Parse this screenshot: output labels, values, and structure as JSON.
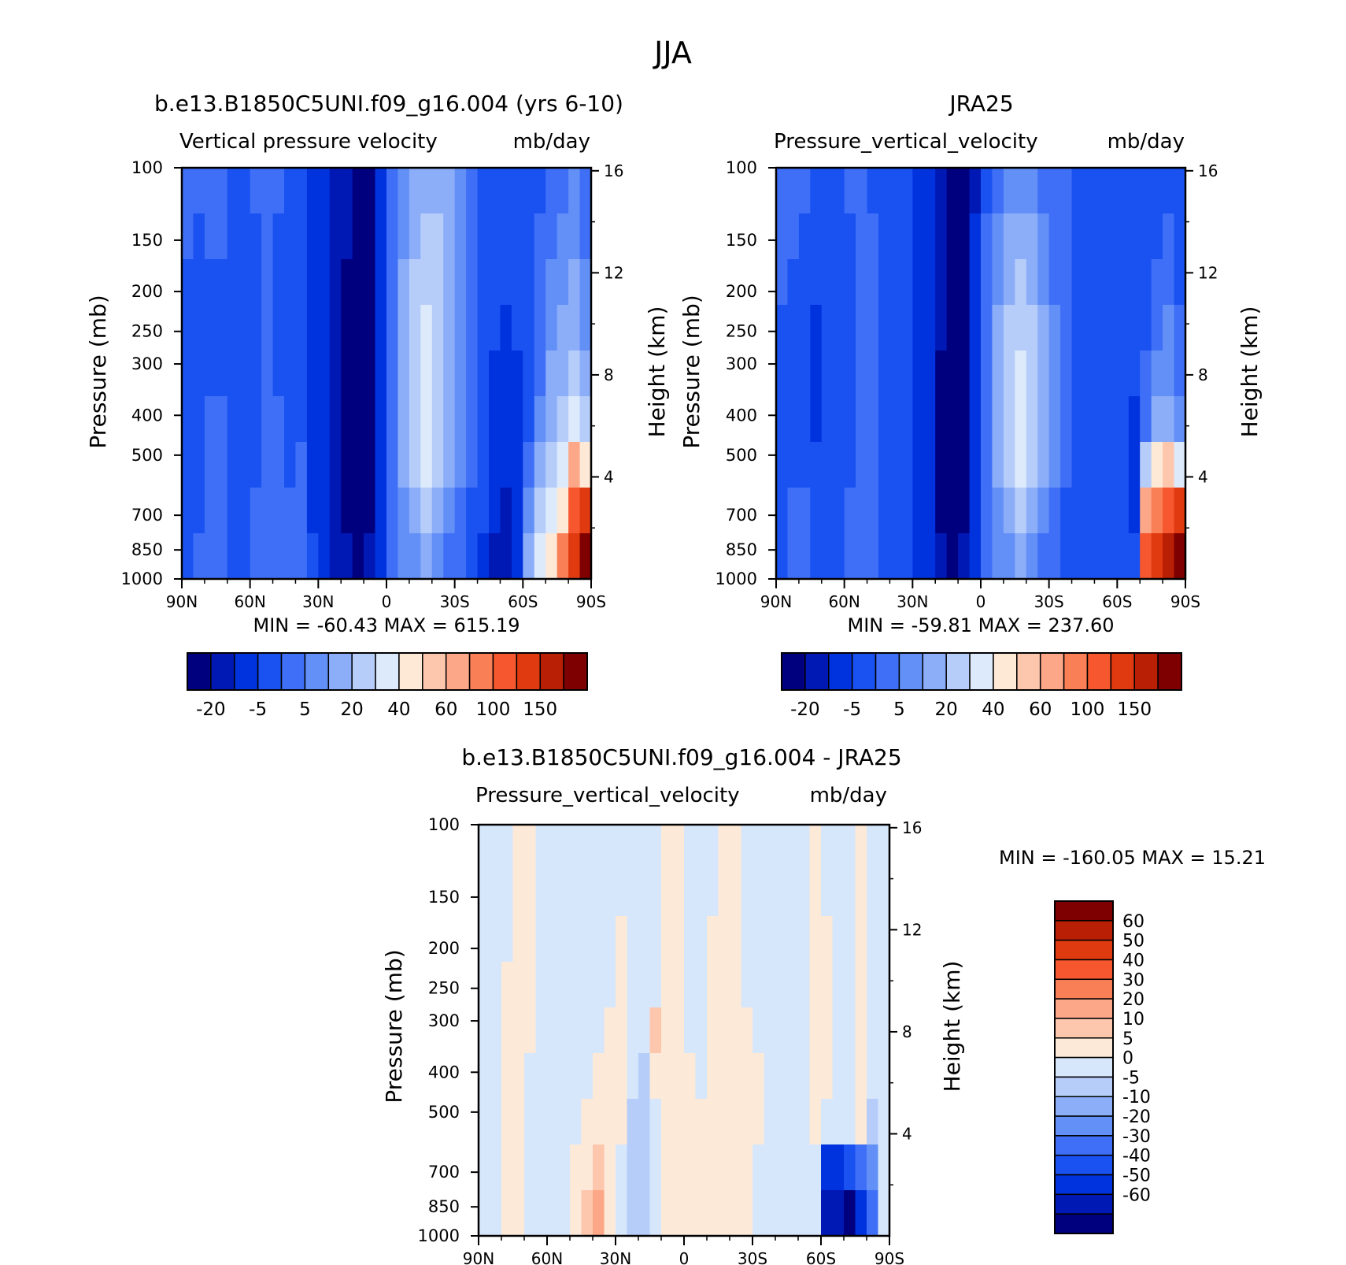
{
  "figure": {
    "title": "JJA"
  },
  "colors": {
    "panel_palette": [
      "#00007f",
      "#0018b4",
      "#0033dd",
      "#1a52f2",
      "#3f6ff6",
      "#6390f7",
      "#8cadf8",
      "#b6cdfa",
      "#ddeafc",
      "#fee8d6",
      "#fdc7ad",
      "#fca787",
      "#f97f57",
      "#f6572e",
      "#e03a10",
      "#b81f05",
      "#7f0000"
    ],
    "diff_palette": [
      "#00007f",
      "#0018b4",
      "#0033dd",
      "#1a52f2",
      "#3f6ff6",
      "#6390f7",
      "#8cadf8",
      "#b6cdfa",
      "#d6e6fb",
      "#fde9d8",
      "#fdc7ad",
      "#fca787",
      "#f97f57",
      "#f6572e",
      "#e03a10",
      "#b81f05",
      "#7f0000"
    ]
  },
  "chart_data": [
    {
      "type": "heatmap",
      "title": "b.e13.B1850C5UNI.f09_g16.004 (yrs 6-10)",
      "subtitle_left": "Vertical pressure velocity",
      "subtitle_right": "mb/day",
      "ylabel": "Pressure (mb)",
      "ylabel_right": "Height (km)",
      "x_ticks": [
        "90N",
        "60N",
        "30N",
        "0",
        "30S",
        "60S",
        "90S"
      ],
      "y_ticks": [
        100,
        150,
        200,
        250,
        300,
        400,
        500,
        700,
        850,
        1000
      ],
      "y_scale": "log",
      "ylim": [
        1000,
        100
      ],
      "height_ticks": [
        4,
        8,
        12,
        16
      ],
      "stats": "MIN = -60.43   MAX = 615.19",
      "colorbar_labels": [
        "-20",
        "-5",
        "5",
        "20",
        "40",
        "60",
        "100",
        "150"
      ],
      "colorbar_orientation": "horizontal",
      "field": [
        [
          4,
          4,
          4,
          4,
          3,
          3,
          4,
          4,
          4,
          3,
          3,
          2,
          2,
          1,
          1,
          0,
          0,
          2,
          4,
          5,
          6,
          6,
          6,
          6,
          5,
          4,
          3,
          3,
          3,
          3,
          3,
          3,
          4,
          4,
          5,
          4
        ],
        [
          4,
          3,
          4,
          4,
          3,
          3,
          3,
          4,
          3,
          3,
          3,
          2,
          2,
          1,
          1,
          0,
          0,
          2,
          4,
          5,
          6,
          7,
          7,
          6,
          5,
          4,
          3,
          3,
          3,
          3,
          3,
          4,
          4,
          5,
          5,
          4
        ],
        [
          3,
          3,
          3,
          3,
          3,
          3,
          3,
          4,
          3,
          3,
          3,
          2,
          2,
          1,
          0,
          0,
          0,
          2,
          4,
          6,
          7,
          7,
          7,
          6,
          5,
          4,
          3,
          3,
          3,
          3,
          3,
          4,
          5,
          5,
          6,
          5
        ],
        [
          3,
          3,
          3,
          3,
          3,
          3,
          3,
          4,
          3,
          3,
          3,
          2,
          2,
          1,
          0,
          0,
          0,
          2,
          4,
          6,
          7,
          8,
          7,
          6,
          5,
          4,
          3,
          3,
          2,
          3,
          3,
          4,
          5,
          6,
          6,
          5
        ],
        [
          3,
          3,
          3,
          3,
          3,
          3,
          3,
          4,
          3,
          3,
          3,
          2,
          2,
          1,
          0,
          0,
          0,
          2,
          4,
          6,
          7,
          8,
          7,
          6,
          5,
          4,
          3,
          2,
          2,
          2,
          3,
          4,
          6,
          6,
          7,
          6
        ],
        [
          3,
          3,
          4,
          4,
          3,
          3,
          3,
          4,
          4,
          3,
          3,
          2,
          2,
          1,
          0,
          0,
          0,
          2,
          4,
          6,
          7,
          8,
          7,
          6,
          5,
          4,
          3,
          2,
          2,
          2,
          3,
          5,
          6,
          7,
          8,
          7
        ],
        [
          3,
          3,
          4,
          4,
          3,
          3,
          3,
          4,
          4,
          3,
          4,
          2,
          2,
          1,
          0,
          0,
          0,
          2,
          4,
          6,
          7,
          8,
          7,
          6,
          5,
          4,
          3,
          2,
          2,
          2,
          4,
          6,
          7,
          8,
          11,
          9
        ],
        [
          3,
          3,
          4,
          4,
          3,
          3,
          4,
          4,
          4,
          4,
          4,
          2,
          2,
          1,
          0,
          0,
          0,
          2,
          4,
          5,
          6,
          7,
          6,
          5,
          4,
          3,
          3,
          2,
          1,
          2,
          5,
          7,
          8,
          9,
          13,
          14
        ],
        [
          3,
          4,
          4,
          4,
          3,
          3,
          4,
          4,
          4,
          4,
          4,
          3,
          2,
          1,
          1,
          0,
          1,
          2,
          4,
          5,
          5,
          6,
          5,
          4,
          4,
          3,
          2,
          1,
          1,
          2,
          6,
          8,
          9,
          12,
          14,
          16
        ]
      ]
    },
    {
      "type": "heatmap",
      "title": "JRA25",
      "subtitle_left": "Pressure_vertical_velocity",
      "subtitle_right": "mb/day",
      "ylabel": "Pressure (mb)",
      "ylabel_right": "Height (km)",
      "x_ticks": [
        "90N",
        "60N",
        "30N",
        "0",
        "30S",
        "60S",
        "90S"
      ],
      "y_ticks": [
        100,
        150,
        200,
        250,
        300,
        400,
        500,
        700,
        850,
        1000
      ],
      "y_scale": "log",
      "ylim": [
        1000,
        100
      ],
      "height_ticks": [
        4,
        8,
        12,
        16
      ],
      "stats": "MIN = -59.81   MAX = 237.60",
      "colorbar_labels": [
        "-20",
        "-5",
        "5",
        "20",
        "40",
        "60",
        "100",
        "150"
      ],
      "colorbar_orientation": "horizontal",
      "field": [
        [
          4,
          4,
          4,
          3,
          3,
          3,
          4,
          4,
          3,
          3,
          3,
          3,
          2,
          2,
          1,
          0,
          0,
          1,
          3,
          4,
          5,
          5,
          5,
          4,
          4,
          4,
          3,
          3,
          3,
          3,
          3,
          3,
          3,
          3,
          3,
          3
        ],
        [
          4,
          4,
          3,
          3,
          3,
          3,
          3,
          4,
          4,
          3,
          3,
          3,
          2,
          2,
          1,
          0,
          0,
          2,
          4,
          5,
          6,
          6,
          6,
          5,
          4,
          4,
          3,
          3,
          3,
          3,
          3,
          3,
          3,
          3,
          4,
          3
        ],
        [
          4,
          3,
          3,
          3,
          3,
          3,
          3,
          4,
          4,
          3,
          3,
          3,
          2,
          2,
          1,
          0,
          0,
          2,
          4,
          5,
          6,
          7,
          6,
          5,
          4,
          4,
          3,
          3,
          3,
          3,
          3,
          3,
          3,
          4,
          4,
          3
        ],
        [
          3,
          3,
          3,
          2,
          3,
          3,
          3,
          4,
          4,
          3,
          3,
          3,
          2,
          2,
          1,
          0,
          0,
          2,
          4,
          6,
          7,
          7,
          7,
          6,
          5,
          4,
          3,
          3,
          3,
          3,
          3,
          3,
          3,
          4,
          5,
          4
        ],
        [
          3,
          3,
          3,
          2,
          3,
          3,
          3,
          4,
          4,
          3,
          3,
          3,
          2,
          2,
          0,
          0,
          0,
          2,
          4,
          6,
          7,
          8,
          7,
          6,
          5,
          4,
          3,
          3,
          3,
          3,
          3,
          3,
          4,
          5,
          5,
          4
        ],
        [
          3,
          3,
          3,
          2,
          3,
          3,
          3,
          4,
          4,
          3,
          3,
          3,
          2,
          2,
          0,
          0,
          0,
          2,
          4,
          6,
          7,
          8,
          7,
          6,
          5,
          4,
          3,
          3,
          3,
          3,
          3,
          2,
          4,
          6,
          6,
          5
        ],
        [
          3,
          3,
          3,
          3,
          3,
          3,
          3,
          4,
          4,
          3,
          3,
          3,
          2,
          2,
          0,
          0,
          0,
          2,
          4,
          6,
          7,
          8,
          7,
          6,
          5,
          4,
          3,
          3,
          3,
          3,
          3,
          2,
          7,
          9,
          10,
          8
        ],
        [
          3,
          4,
          4,
          3,
          3,
          3,
          4,
          4,
          4,
          3,
          3,
          3,
          2,
          2,
          0,
          0,
          0,
          2,
          4,
          5,
          6,
          7,
          6,
          5,
          4,
          3,
          3,
          3,
          3,
          3,
          3,
          2,
          11,
          12,
          13,
          14
        ],
        [
          3,
          4,
          4,
          3,
          3,
          3,
          4,
          4,
          4,
          3,
          3,
          3,
          2,
          2,
          1,
          0,
          1,
          2,
          4,
          5,
          5,
          6,
          5,
          4,
          4,
          3,
          3,
          3,
          3,
          3,
          3,
          3,
          13,
          14,
          15,
          16
        ]
      ]
    },
    {
      "type": "heatmap",
      "title": "b.e13.B1850C5UNI.f09_g16.004 - JRA25",
      "subtitle_left": "Pressure_vertical_velocity",
      "subtitle_right": "mb/day",
      "ylabel": "Pressure (mb)",
      "ylabel_right": "Height (km)",
      "x_ticks": [
        "90N",
        "60N",
        "30N",
        "0",
        "30S",
        "60S",
        "90S"
      ],
      "y_ticks": [
        100,
        150,
        200,
        250,
        300,
        400,
        500,
        700,
        850,
        1000
      ],
      "y_scale": "log",
      "ylim": [
        1000,
        100
      ],
      "height_ticks": [
        4,
        8,
        12,
        16
      ],
      "stats": "MIN = -160.05   MAX =   15.21",
      "colorbar_labels": [
        "60",
        "50",
        "40",
        "30",
        "20",
        "10",
        "5",
        "0",
        "-5",
        "-10",
        "-20",
        "-30",
        "-40",
        "-50",
        "-60"
      ],
      "colorbar_orientation": "vertical",
      "field": [
        [
          8,
          8,
          8,
          9,
          9,
          8,
          8,
          8,
          8,
          8,
          8,
          8,
          8,
          8,
          8,
          8,
          9,
          9,
          8,
          8,
          8,
          9,
          9,
          8,
          8,
          8,
          8,
          8,
          8,
          9,
          8,
          8,
          8,
          9,
          8,
          8
        ],
        [
          8,
          8,
          8,
          9,
          9,
          8,
          8,
          8,
          8,
          8,
          8,
          8,
          8,
          8,
          8,
          8,
          9,
          9,
          8,
          8,
          8,
          9,
          9,
          8,
          8,
          8,
          8,
          8,
          8,
          9,
          8,
          8,
          8,
          9,
          8,
          8
        ],
        [
          8,
          8,
          8,
          9,
          9,
          8,
          8,
          8,
          8,
          8,
          8,
          8,
          9,
          8,
          8,
          8,
          9,
          9,
          8,
          8,
          9,
          9,
          9,
          8,
          8,
          8,
          8,
          8,
          8,
          9,
          9,
          8,
          8,
          9,
          8,
          8
        ],
        [
          8,
          8,
          9,
          9,
          9,
          8,
          8,
          8,
          8,
          8,
          8,
          8,
          9,
          8,
          8,
          8,
          9,
          9,
          8,
          8,
          9,
          9,
          9,
          8,
          8,
          8,
          8,
          8,
          8,
          9,
          9,
          8,
          8,
          9,
          8,
          8
        ],
        [
          8,
          8,
          9,
          9,
          9,
          8,
          8,
          8,
          8,
          8,
          8,
          9,
          9,
          8,
          8,
          10,
          9,
          9,
          8,
          8,
          9,
          9,
          9,
          9,
          8,
          8,
          8,
          8,
          8,
          9,
          9,
          8,
          8,
          9,
          8,
          8
        ],
        [
          8,
          8,
          9,
          9,
          8,
          8,
          8,
          8,
          8,
          8,
          9,
          9,
          9,
          8,
          7,
          9,
          9,
          9,
          9,
          8,
          9,
          9,
          9,
          9,
          9,
          8,
          8,
          8,
          8,
          9,
          9,
          8,
          8,
          9,
          8,
          8
        ],
        [
          8,
          8,
          9,
          9,
          8,
          8,
          8,
          8,
          8,
          9,
          9,
          9,
          9,
          7,
          7,
          8,
          9,
          9,
          9,
          9,
          9,
          9,
          9,
          9,
          9,
          8,
          8,
          8,
          8,
          9,
          8,
          8,
          8,
          9,
          7,
          8
        ],
        [
          8,
          8,
          9,
          9,
          8,
          8,
          8,
          8,
          9,
          9,
          10,
          9,
          8,
          7,
          7,
          8,
          9,
          9,
          9,
          9,
          9,
          9,
          9,
          9,
          8,
          8,
          8,
          8,
          8,
          8,
          2,
          2,
          3,
          4,
          5,
          8
        ],
        [
          8,
          8,
          9,
          9,
          8,
          8,
          8,
          8,
          9,
          10,
          11,
          9,
          8,
          7,
          7,
          8,
          9,
          9,
          9,
          9,
          9,
          9,
          9,
          9,
          8,
          8,
          8,
          8,
          8,
          8,
          1,
          1,
          0,
          2,
          4,
          8
        ]
      ]
    }
  ]
}
